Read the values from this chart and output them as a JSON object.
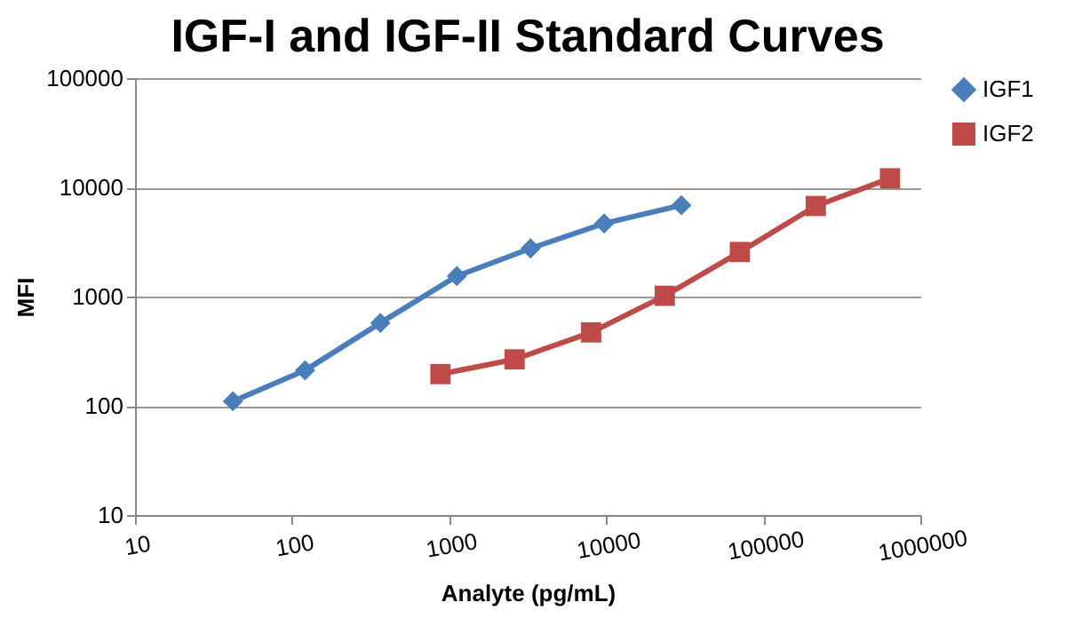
{
  "chart_data": {
    "type": "line",
    "title": "IGF-I and IGF-II Standard Curves",
    "xlabel": "Analyte (pg/mL)",
    "ylabel": "MFI",
    "log": "xy",
    "xlim": [
      10,
      1000000
    ],
    "xticks": [
      10,
      100,
      1000,
      10000,
      100000,
      1000000
    ],
    "ylim": [
      10,
      100000
    ],
    "yticks": [
      10,
      100,
      1000,
      10000,
      100000
    ],
    "grid": "y",
    "legend": "right",
    "series": [
      {
        "name": "IGF1",
        "color": "#4a7ebb",
        "marker": "diamond",
        "x": [
          42,
          121,
          365,
          1120,
          3300,
          9700,
          30100
        ],
        "values": [
          110,
          211,
          574,
          1540,
          2760,
          4670,
          6860
        ]
      },
      {
        "name": "IGF2",
        "color": "#be4b48",
        "marker": "square",
        "x": [
          880,
          2610,
          8020,
          23600,
          71000,
          216000,
          641000
        ],
        "values": [
          195,
          266,
          470,
          1016,
          2560,
          6750,
          12100
        ]
      }
    ]
  }
}
